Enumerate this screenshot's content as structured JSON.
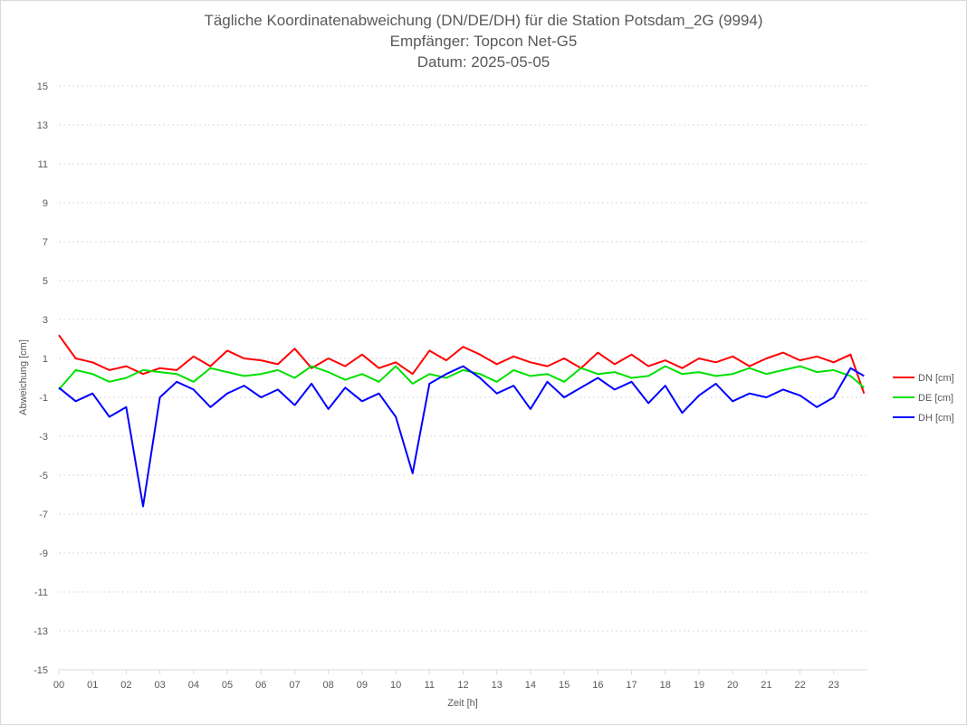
{
  "chart_data": {
    "type": "line",
    "title_lines": [
      "Tägliche Koordinatenabweichung (DN/DE/DH) für die Station Potsdam_2G (9994)",
      "Empfänger: Topcon Net-G5",
      "Datum: 2025-05-05"
    ],
    "xlabel": "Zeit [h]",
    "ylabel": "Abweichung [cm]",
    "ylim": [
      -15,
      15
    ],
    "xlim": [
      0,
      24
    ],
    "grid": true,
    "legend_position": "right",
    "x_ticks": [
      "00",
      "01",
      "02",
      "03",
      "04",
      "05",
      "06",
      "07",
      "08",
      "09",
      "10",
      "11",
      "12",
      "13",
      "14",
      "15",
      "16",
      "17",
      "18",
      "19",
      "20",
      "21",
      "22",
      "23"
    ],
    "y_ticks": [
      "15",
      "13",
      "11",
      "9",
      "7",
      "5",
      "3",
      "1",
      "-1",
      "-3",
      "-5",
      "-7",
      "-9",
      "-11",
      "-13",
      "-15"
    ],
    "x_tick_values": [
      0,
      1,
      2,
      3,
      4,
      5,
      6,
      7,
      8,
      9,
      10,
      11,
      12,
      13,
      14,
      15,
      16,
      17,
      18,
      19,
      20,
      21,
      22,
      23
    ],
    "y_tick_values": [
      15,
      13,
      11,
      9,
      7,
      5,
      3,
      1,
      -1,
      -3,
      -5,
      -7,
      -9,
      -11,
      -13,
      -15
    ],
    "x": [
      0.0,
      0.5,
      1.0,
      1.5,
      2.0,
      2.5,
      3.0,
      3.5,
      4.0,
      4.5,
      5.0,
      5.5,
      6.0,
      6.5,
      7.0,
      7.5,
      8.0,
      8.5,
      9.0,
      9.5,
      10.0,
      10.5,
      11.0,
      11.5,
      12.0,
      12.5,
      13.0,
      13.5,
      14.0,
      14.5,
      15.0,
      15.5,
      16.0,
      16.5,
      17.0,
      17.5,
      18.0,
      18.5,
      19.0,
      19.5,
      20.0,
      20.5,
      21.0,
      21.5,
      22.0,
      22.5,
      23.0,
      23.5,
      23.9
    ],
    "series": [
      {
        "name": "DN [cm]",
        "color": "#ff0000",
        "values": [
          2.2,
          1.0,
          0.8,
          0.4,
          0.6,
          0.2,
          0.5,
          0.4,
          1.1,
          0.6,
          1.4,
          1.0,
          0.9,
          0.7,
          1.5,
          0.5,
          1.0,
          0.6,
          1.2,
          0.5,
          0.8,
          0.2,
          1.4,
          0.9,
          1.6,
          1.2,
          0.7,
          1.1,
          0.8,
          0.6,
          1.0,
          0.5,
          1.3,
          0.7,
          1.2,
          0.6,
          0.9,
          0.5,
          1.0,
          0.8,
          1.1,
          0.6,
          1.0,
          1.3,
          0.9,
          1.1,
          0.8,
          1.2,
          -0.8
        ]
      },
      {
        "name": "DE [cm]",
        "color": "#00e000",
        "values": [
          -0.6,
          0.4,
          0.2,
          -0.2,
          0.0,
          0.4,
          0.3,
          0.2,
          -0.2,
          0.5,
          0.3,
          0.1,
          0.2,
          0.4,
          0.0,
          0.6,
          0.3,
          -0.1,
          0.2,
          -0.2,
          0.6,
          -0.3,
          0.2,
          0.0,
          0.4,
          0.2,
          -0.2,
          0.4,
          0.1,
          0.2,
          -0.2,
          0.5,
          0.2,
          0.3,
          0.0,
          0.1,
          0.6,
          0.2,
          0.3,
          0.1,
          0.2,
          0.5,
          0.2,
          0.4,
          0.6,
          0.3,
          0.4,
          0.1,
          -0.5
        ]
      },
      {
        "name": "DH [cm]",
        "color": "#0000ff",
        "values": [
          -0.5,
          -1.2,
          -0.8,
          -2.0,
          -1.5,
          -6.6,
          -1.0,
          -0.2,
          -0.6,
          -1.5,
          -0.8,
          -0.4,
          -1.0,
          -0.6,
          -1.4,
          -0.3,
          -1.6,
          -0.5,
          -1.2,
          -0.8,
          -2.0,
          -4.9,
          -0.3,
          0.2,
          0.6,
          0.0,
          -0.8,
          -0.4,
          -1.6,
          -0.2,
          -1.0,
          -0.5,
          0.0,
          -0.6,
          -0.2,
          -1.3,
          -0.4,
          -1.8,
          -0.9,
          -0.3,
          -1.2,
          -0.8,
          -1.0,
          -0.6,
          -0.9,
          -1.5,
          -1.0,
          0.5,
          0.1
        ]
      }
    ]
  }
}
